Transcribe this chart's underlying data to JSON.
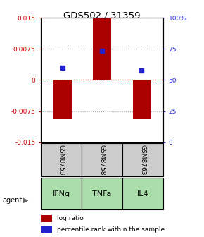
{
  "title": "GDS502 / 31359",
  "samples": [
    "GSM8753",
    "GSM8758",
    "GSM8763"
  ],
  "agents": [
    "IFNg",
    "TNFa",
    "IL4"
  ],
  "log_ratios": [
    -0.0093,
    0.0148,
    -0.0093
  ],
  "percentile_ranks": [
    0.6,
    0.735,
    0.575
  ],
  "ylim_left": [
    -0.015,
    0.015
  ],
  "ylim_right": [
    0,
    1.0
  ],
  "yticks_left": [
    -0.015,
    -0.0075,
    0,
    0.0075,
    0.015
  ],
  "ytick_labels_left": [
    "-0.015",
    "-0.0075",
    "0",
    "0.0075",
    "0.015"
  ],
  "yticks_right": [
    0,
    0.25,
    0.5,
    0.75,
    1.0
  ],
  "ytick_labels_right": [
    "0",
    "25",
    "50",
    "75",
    "100%"
  ],
  "bar_color": "#aa0000",
  "dot_color": "#2222cc",
  "agent_color": "#aaddaa",
  "sample_bg_color": "#cccccc",
  "left_tick_color": "#cc0000",
  "right_tick_color": "#2222cc",
  "bar_width": 0.45,
  "legend_bar_label": "log ratio",
  "legend_dot_label": "percentile rank within the sample"
}
